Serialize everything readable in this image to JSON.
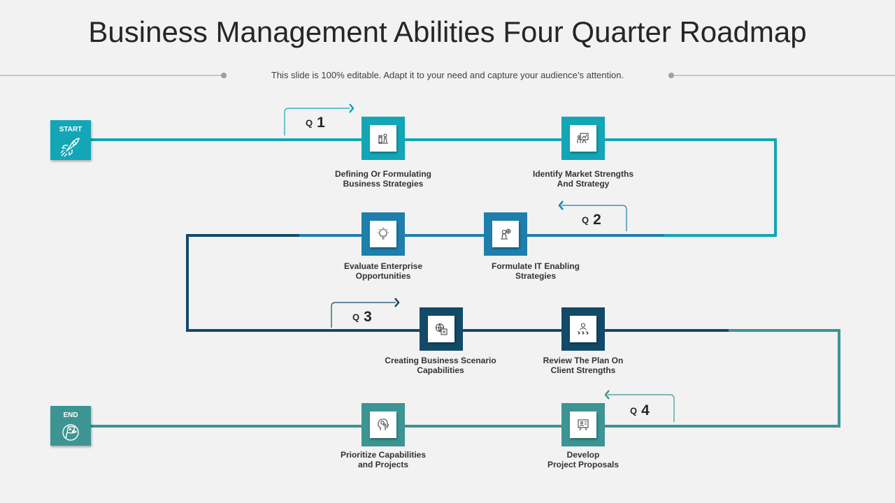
{
  "title": "Business Management Abilities Four Quarter Roadmap",
  "subtitle": "This slide is 100% editable. Adapt it to your need and capture your audience’s attention.",
  "colors": {
    "teal": "#13a6b6",
    "blue": "#1e7fad",
    "navy": "#124a67",
    "green": "#3c9593"
  },
  "start": {
    "label": "START",
    "icon": "rocket-icon"
  },
  "end": {
    "label": "END",
    "icon": "finish-flag-icon"
  },
  "quarters": [
    {
      "q": "Q",
      "num": "1"
    },
    {
      "q": "Q",
      "num": "2"
    },
    {
      "q": "Q",
      "num": "3"
    },
    {
      "q": "Q",
      "num": "4"
    }
  ],
  "steps": [
    {
      "line1": "Defining Or Formulating",
      "line2": "Business Strategies",
      "icon": "chess-pieces-icon"
    },
    {
      "line1": "Identify Market Strengths",
      "line2": "And  Strategy",
      "icon": "presentation-board-icon"
    },
    {
      "line1": "Formulate IT Enabling",
      "line2": "Strategies",
      "icon": "chess-gear-icon"
    },
    {
      "line1": "Evaluate Enterprise",
      "line2": "Opportunities",
      "icon": "lightbulb-icon"
    },
    {
      "line1": "Creating Business Scenario",
      "line2": "Capabilities",
      "icon": "globe-document-icon"
    },
    {
      "line1": "Review The Plan On",
      "line2": "Client  Strengths",
      "icon": "user-rating-icon"
    },
    {
      "line1": "Develop",
      "line2": "Project Proposals",
      "icon": "project-board-icon"
    },
    {
      "line1": "Prioritize Capabilities",
      "line2": "and Projects",
      "icon": "head-gears-icon"
    }
  ]
}
